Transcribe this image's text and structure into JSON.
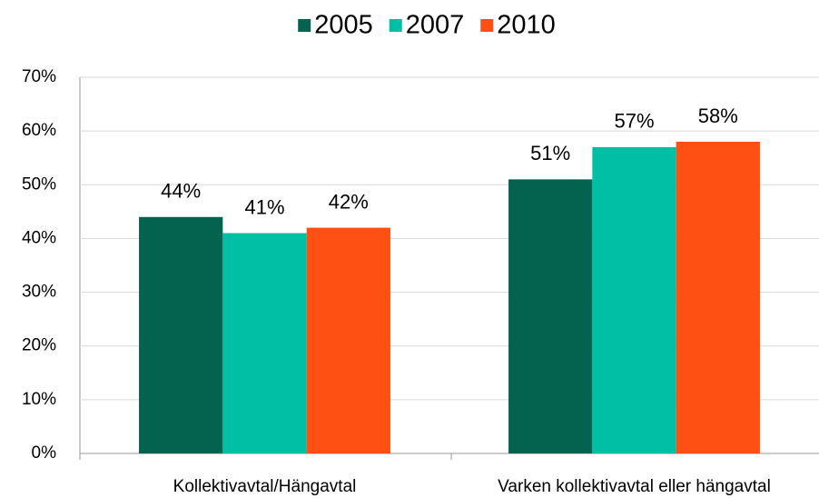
{
  "chart_data": {
    "type": "bar",
    "categories": [
      "Kollektivavtal/Hängavtal",
      "Varken kollektivavtal eller hängavtal"
    ],
    "series": [
      {
        "name": "2005",
        "color": "#03634f",
        "values": [
          44,
          51
        ],
        "value_labels": [
          "44%",
          "51%"
        ]
      },
      {
        "name": "2007",
        "color": "#00bfa5",
        "values": [
          41,
          57
        ],
        "value_labels": [
          "41%",
          "57%"
        ]
      },
      {
        "name": "2010",
        "color": "#ff5014",
        "values": [
          42,
          58
        ],
        "value_labels": [
          "42%",
          "58%"
        ]
      }
    ],
    "ylim": [
      0,
      70
    ],
    "yticks": [
      {
        "value": 0,
        "label": "0%"
      },
      {
        "value": 10,
        "label": "10%"
      },
      {
        "value": 20,
        "label": "20%"
      },
      {
        "value": 30,
        "label": "30%"
      },
      {
        "value": 40,
        "label": "40%"
      },
      {
        "value": 50,
        "label": "50%"
      },
      {
        "value": 60,
        "label": "60%"
      },
      {
        "value": 70,
        "label": "70%"
      }
    ],
    "grid": true,
    "legend": "top"
  }
}
